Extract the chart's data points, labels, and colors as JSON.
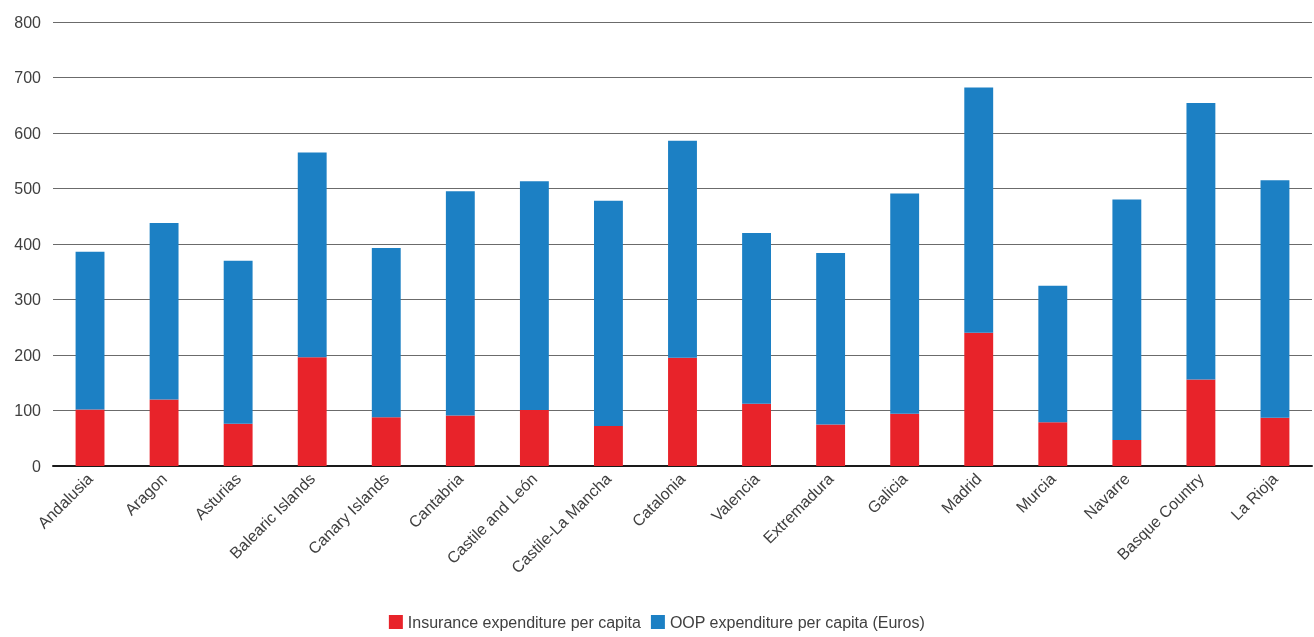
{
  "chart_data": {
    "type": "bar",
    "stacked": true,
    "categories": [
      "Andalusia",
      "Aragon",
      "Asturias",
      "Balearic Islands",
      "Canary Islands",
      "Cantabria",
      "Castile and León",
      "Castile-La Mancha",
      "Catalonia",
      "Valencia",
      "Extremadura",
      "Galicia",
      "Madrid",
      "Murcia",
      "Navarre",
      "Basque Country",
      "La Rioja"
    ],
    "series": [
      {
        "name": "Insurance expenditure per capita",
        "color": "#e8232a",
        "values": [
          102,
          120,
          76,
          196,
          88,
          91,
          101,
          72,
          195,
          112,
          75,
          94,
          240,
          79,
          47,
          156,
          87
        ]
      },
      {
        "name": "OOP expenditure per capita (Euros)",
        "color": "#1c80c4",
        "values": [
          284,
          318,
          294,
          369,
          305,
          404,
          412,
          406,
          391,
          308,
          309,
          397,
          442,
          246,
          433,
          498,
          428
        ]
      }
    ],
    "ylim": [
      0,
      800
    ],
    "yticks": [
      0,
      100,
      200,
      300,
      400,
      500,
      600,
      700,
      800
    ],
    "grid": "y",
    "legend": "bottom"
  }
}
